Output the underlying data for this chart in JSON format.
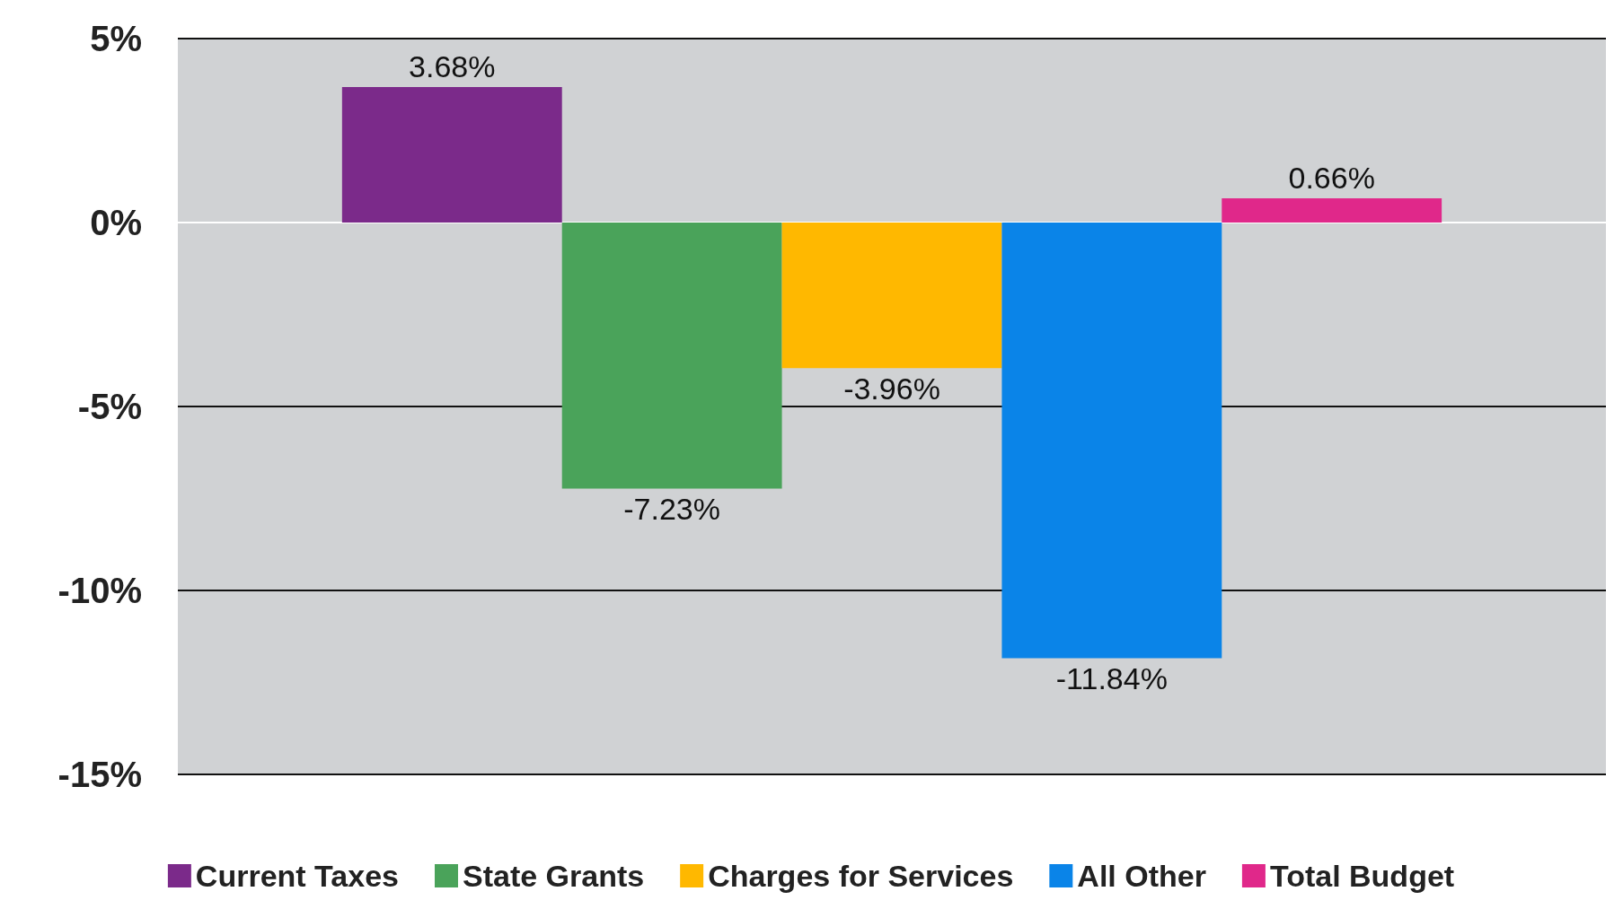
{
  "chart_data": {
    "type": "bar",
    "categories": [
      null
    ],
    "series": [
      {
        "name": "Current Taxes",
        "color": "#7b2a8a",
        "values": [
          3.68
        ],
        "value_labels": [
          "3.68%"
        ]
      },
      {
        "name": "State Grants",
        "color": "#4aa35a",
        "values": [
          -7.23
        ],
        "value_labels": [
          "-7.23%"
        ]
      },
      {
        "name": "Charges for Services",
        "color": "#ffb800",
        "values": [
          -3.96
        ],
        "value_labels": [
          "-3.96%"
        ]
      },
      {
        "name": "All Other",
        "color": "#0a84e8",
        "values": [
          -11.84
        ],
        "value_labels": [
          "-11.84%"
        ]
      },
      {
        "name": "Total Budget",
        "color": "#e0288a",
        "values": [
          0.66
        ],
        "value_labels": [
          "0.66%"
        ]
      }
    ],
    "ylim": [
      -15,
      5
    ],
    "yticks": [
      {
        "value": -15,
        "label": "-15%"
      },
      {
        "value": -10,
        "label": "-10%"
      },
      {
        "value": -5,
        "label": "-5%"
      },
      {
        "value": 0,
        "label": "0%"
      },
      {
        "value": 5,
        "label": "5%"
      }
    ],
    "grid": "y",
    "legend": "bottom"
  }
}
